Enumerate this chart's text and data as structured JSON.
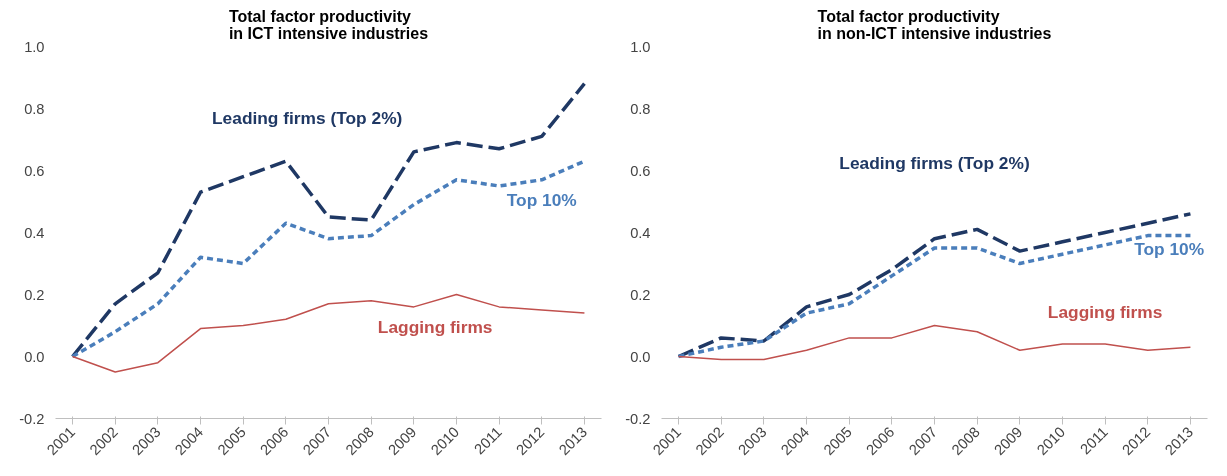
{
  "chart_data": [
    {
      "type": "line",
      "title": "Total factor productivity\nin ICT intensive industries",
      "categories": [
        "2001",
        "2002",
        "2003",
        "2004",
        "2005",
        "2006",
        "2007",
        "2008",
        "2009",
        "2010",
        "2011",
        "2012",
        "2013"
      ],
      "ylim": [
        -0.2,
        1.0
      ],
      "yticks": [
        {
          "value": -0.2,
          "label": "-0.2"
        },
        {
          "value": 0,
          "label": "0.0"
        },
        {
          "value": 0.2,
          "label": "0.2"
        },
        {
          "value": 0.4,
          "label": "0.4"
        },
        {
          "value": 0.6,
          "label": "0.6"
        },
        {
          "value": 0.8,
          "label": "0.8"
        },
        {
          "value": 1,
          "label": "1.0"
        }
      ],
      "grid": false,
      "legend": false,
      "marker": "none",
      "series": [
        {
          "name": "Leading firms (Top 2%)",
          "color": "#1f3864",
          "line_style": "dashed",
          "values": [
            0,
            0.17,
            0.27,
            0.53,
            0.58,
            0.63,
            0.45,
            0.44,
            0.66,
            0.69,
            0.67,
            0.71,
            0.88
          ]
        },
        {
          "name": "Top 10%",
          "color": "#4a7ebb",
          "line_style": "dotted",
          "values": [
            0,
            0.08,
            0.17,
            0.32,
            0.3,
            0.43,
            0.38,
            0.39,
            0.49,
            0.57,
            0.55,
            0.57,
            0.63
          ]
        },
        {
          "name": "Lagging firms",
          "color": "#c0504d",
          "line_style": "solid",
          "values": [
            0,
            -0.05,
            -0.02,
            0.09,
            0.1,
            0.12,
            0.17,
            0.18,
            0.16,
            0.2,
            0.16,
            0.15,
            0.14
          ]
        }
      ]
    },
    {
      "type": "line",
      "title": "Total factor productivity\nin non-ICT intensive industries",
      "categories": [
        "2001",
        "2002",
        "2003",
        "2004",
        "2005",
        "2006",
        "2007",
        "2008",
        "2009",
        "2010",
        "2011",
        "2012",
        "2013"
      ],
      "ylim": [
        -0.2,
        1.0
      ],
      "yticks": [
        {
          "value": -0.2,
          "label": "-0.2"
        },
        {
          "value": 0,
          "label": "0.0"
        },
        {
          "value": 0.2,
          "label": "0.2"
        },
        {
          "value": 0.4,
          "label": "0.4"
        },
        {
          "value": 0.6,
          "label": "0.6"
        },
        {
          "value": 0.8,
          "label": "0.8"
        },
        {
          "value": 1,
          "label": "1.0"
        }
      ],
      "grid": false,
      "legend": false,
      "marker": "none",
      "series": [
        {
          "name": "Leading firms (Top 2%)",
          "color": "#1f3864",
          "line_style": "dashed",
          "values": [
            0,
            0.06,
            0.05,
            0.16,
            0.2,
            0.28,
            0.38,
            0.41,
            0.34,
            0.37,
            0.4,
            0.43,
            0.46
          ]
        },
        {
          "name": "Top 10%",
          "color": "#4a7ebb",
          "line_style": "dotted",
          "values": [
            0,
            0.03,
            0.05,
            0.14,
            0.17,
            0.26,
            0.35,
            0.35,
            0.3,
            0.33,
            0.36,
            0.39,
            0.39
          ]
        },
        {
          "name": "Lagging firms",
          "color": "#c0504d",
          "line_style": "solid",
          "values": [
            0,
            -0.01,
            -0.01,
            0.02,
            0.06,
            0.06,
            0.1,
            0.08,
            0.02,
            0.04,
            0.04,
            0.02,
            0.03
          ]
        }
      ]
    }
  ]
}
